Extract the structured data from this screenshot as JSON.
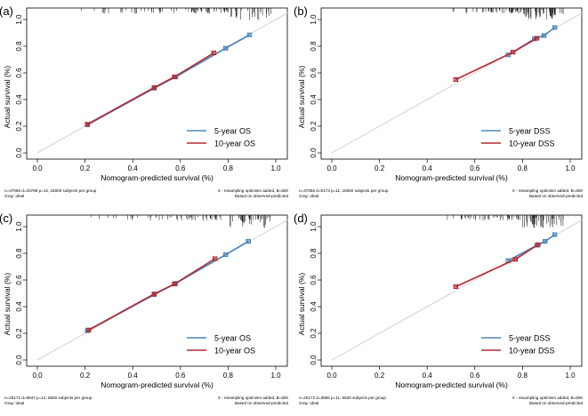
{
  "colors": {
    "five_year": "#4a86b8",
    "ten_year": "#b52a33",
    "ideal": "#c8c8c8"
  },
  "chart_data": [
    {
      "panel_label": "(a)",
      "type": "line",
      "xlabel": "Nomogram-predicted survival (%)",
      "ylabel": "Actual survival (%)",
      "xlim": [
        0,
        1
      ],
      "ylim": [
        0,
        1
      ],
      "xticks": [
        "0.0",
        "0.2",
        "0.4",
        "0.6",
        "0.8",
        "1.0"
      ],
      "yticks": [
        "0.0",
        "0.2",
        "0.4",
        "0.6",
        "0.8",
        "1.0"
      ],
      "legend_position": "bottom-right",
      "series": [
        {
          "name": "5-year OS",
          "x": [
            0.21,
            0.49,
            0.58,
            0.79,
            0.89
          ],
          "y": [
            0.21,
            0.485,
            0.57,
            0.785,
            0.885
          ]
        },
        {
          "name": "10-year OS",
          "x": [
            0.21,
            0.49,
            0.575,
            0.74
          ],
          "y": [
            0.215,
            0.49,
            0.57,
            0.75
          ]
        }
      ],
      "note_left_1": "n=47066 d=20789 p=12, 15000 subjects per group",
      "note_left_2": "Gray: ideal",
      "note_right_1": "X - resampling optimism added, B=500",
      "note_right_2": "Based on observed-predicted"
    },
    {
      "panel_label": "(b)",
      "type": "line",
      "xlabel": "Nomogram-predicted survival (%)",
      "ylabel": "Actual survival (%)",
      "xlim": [
        0,
        1
      ],
      "ylim": [
        0,
        1
      ],
      "xticks": [
        "0.0",
        "0.2",
        "0.4",
        "0.6",
        "0.8",
        "1.0"
      ],
      "yticks": [
        "0.0",
        "0.2",
        "0.4",
        "0.6",
        "0.8",
        "1.0"
      ],
      "legend_position": "bottom-right",
      "series": [
        {
          "name": "5-year DSS",
          "x": [
            0.74,
            0.85,
            0.89,
            0.935
          ],
          "y": [
            0.735,
            0.855,
            0.88,
            0.94
          ]
        },
        {
          "name": "10-year DSS",
          "x": [
            0.52,
            0.76,
            0.86
          ],
          "y": [
            0.55,
            0.755,
            0.86
          ]
        }
      ],
      "note_left_1": "n=47066 d=9173 p=11, 15000 subjects per group",
      "note_left_2": "Gray: ideal",
      "note_right_1": "X - resampling optimism added, B=500",
      "note_right_2": "Based on observed-predicted"
    },
    {
      "panel_label": "(c)",
      "type": "line",
      "xlabel": "Nomogram-predicted survival (%)",
      "ylabel": "Actual survival (%)",
      "xlim": [
        0,
        1
      ],
      "ylim": [
        0,
        1
      ],
      "xticks": [
        "0.0",
        "0.2",
        "0.4",
        "0.6",
        "0.8",
        "1.0"
      ],
      "yticks": [
        "0.0",
        "0.2",
        "0.4",
        "0.6",
        "0.8",
        "1.0"
      ],
      "legend_position": "bottom-right",
      "series": [
        {
          "name": "5-year OS",
          "x": [
            0.21,
            0.49,
            0.58,
            0.79,
            0.885
          ],
          "y": [
            0.22,
            0.49,
            0.575,
            0.79,
            0.89
          ]
        },
        {
          "name": "10-year OS",
          "x": [
            0.215,
            0.49,
            0.575,
            0.745
          ],
          "y": [
            0.225,
            0.495,
            0.57,
            0.76
          ]
        }
      ],
      "note_left_1": "n=20172 d=8847 p=12, 6500 subjects per group",
      "note_left_2": "Gray: ideal",
      "note_right_1": "X - resampling optimism added, B=500",
      "note_right_2": "Based on observed-predicted"
    },
    {
      "panel_label": "(d)",
      "type": "line",
      "xlabel": "Nomogram-predicted survival (%)",
      "ylabel": "Actual survival (%)",
      "xlim": [
        0,
        1
      ],
      "ylim": [
        0,
        1
      ],
      "xticks": [
        "0.0",
        "0.2",
        "0.4",
        "0.6",
        "0.8",
        "1.0"
      ],
      "yticks": [
        "0.0",
        "0.2",
        "0.4",
        "0.6",
        "0.8",
        "1.0"
      ],
      "legend_position": "bottom-right",
      "series": [
        {
          "name": "5-year DSS",
          "x": [
            0.74,
            0.86,
            0.895,
            0.935
          ],
          "y": [
            0.745,
            0.86,
            0.89,
            0.94
          ]
        },
        {
          "name": "10-year DSS",
          "x": [
            0.52,
            0.77,
            0.865
          ],
          "y": [
            0.55,
            0.755,
            0.865
          ]
        }
      ],
      "note_left_1": "n=20172 d=3895 p=11, 6500 subjects per group",
      "note_left_2": "Gray: ideal",
      "note_right_1": "X - resampling optimism added, B=500",
      "note_right_2": "Based on observed-predicted"
    }
  ]
}
